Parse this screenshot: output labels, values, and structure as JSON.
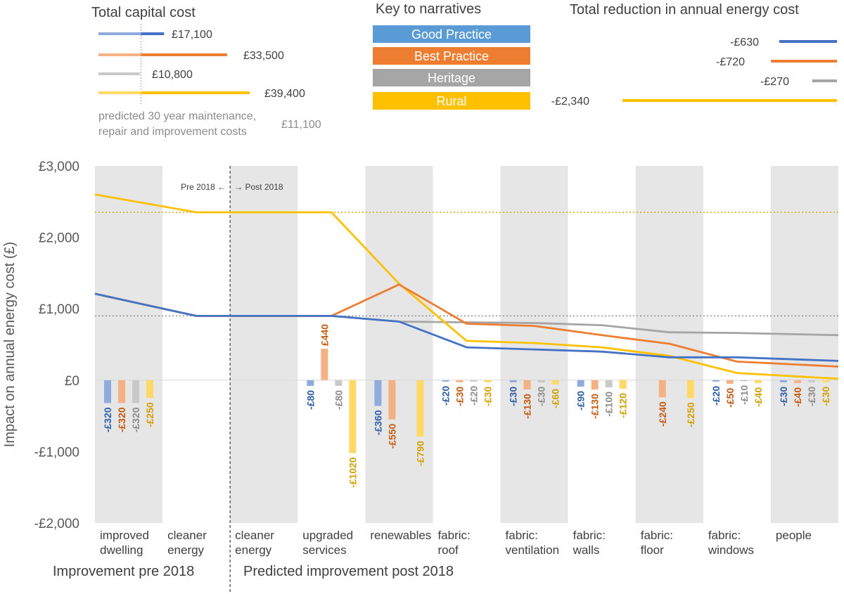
{
  "chart_data": {
    "type": "line",
    "ylabel": "Impact on annual energy cost (£)",
    "ylim": [
      -2000,
      3000
    ],
    "yticks": [
      {
        "v": 3000,
        "label": "£3,000"
      },
      {
        "v": 2000,
        "label": "£2,000"
      },
      {
        "v": 1000,
        "label": "£1,000"
      },
      {
        "v": 0,
        "label": "£0"
      },
      {
        "v": -1000,
        "label": "-£1,000"
      },
      {
        "v": -2000,
        "label": "-£2,000"
      }
    ],
    "categories": [
      [
        "improved",
        "dwelling"
      ],
      [
        "cleaner",
        "energy"
      ],
      [
        "cleaner",
        "energy"
      ],
      [
        "upgraded",
        "services"
      ],
      [
        "renewables"
      ],
      [
        "fabric:",
        "roof"
      ],
      [
        "fabric:",
        "ventilation"
      ],
      [
        "fabric:",
        "walls"
      ],
      [
        "fabric:",
        "floor"
      ],
      [
        "fabric:",
        "windows"
      ],
      [
        "people"
      ]
    ],
    "period_labels": {
      "pre": "Improvement pre 2018",
      "post": "Predicted improvement post 2018"
    },
    "divider_labels": {
      "pre": "Pre 2018 ←",
      "post": "→ Post 2018"
    },
    "reference_lines": [
      {
        "value": 2350,
        "color": "#d4a000"
      },
      {
        "value": 900,
        "color": "#7f7f7f"
      }
    ],
    "series": [
      {
        "name": "Good Practice",
        "color": "#4472c4",
        "bar_color": "#8faadc",
        "label_color": "#2e5fa8",
        "line": [
          [
            0,
            1210
          ],
          [
            1,
            900
          ],
          [
            2,
            900
          ],
          [
            3,
            900
          ],
          [
            4,
            820
          ],
          [
            5,
            460
          ],
          [
            6,
            430
          ],
          [
            7,
            400
          ],
          [
            8,
            320
          ],
          [
            9,
            320
          ],
          [
            10,
            270
          ]
        ],
        "bars": [
          [
            0,
            -320,
            "-£320"
          ],
          [
            3,
            -80,
            "-£80"
          ],
          [
            4,
            -360,
            "-£360"
          ],
          [
            5,
            -20,
            "-£20"
          ],
          [
            6,
            -30,
            "-£30"
          ],
          [
            7,
            -90,
            "-£90"
          ],
          [
            9,
            -20,
            "-£20"
          ],
          [
            10,
            -30,
            "-£30"
          ]
        ]
      },
      {
        "name": "Best Practice",
        "color": "#ed7d31",
        "bar_color": "#f4b183",
        "label_color": "#c55a11",
        "line": [
          [
            0,
            1210
          ],
          [
            1,
            900
          ],
          [
            2,
            900
          ],
          [
            3,
            900
          ],
          [
            4,
            1340
          ],
          [
            5,
            790
          ],
          [
            6,
            760
          ],
          [
            7,
            630
          ],
          [
            8,
            510
          ],
          [
            9,
            260
          ],
          [
            10,
            190
          ]
        ],
        "bars": [
          [
            0,
            -320,
            "-£320"
          ],
          [
            3,
            440,
            "£440"
          ],
          [
            4,
            -550,
            "-£550"
          ],
          [
            5,
            -30,
            "-£30"
          ],
          [
            6,
            -130,
            "-£130"
          ],
          [
            7,
            -130,
            "-£130"
          ],
          [
            8,
            -240,
            "-£240"
          ],
          [
            9,
            -50,
            "-£50"
          ],
          [
            10,
            -40,
            "-£40"
          ]
        ]
      },
      {
        "name": "Heritage",
        "color": "#a5a5a5",
        "bar_color": "#c9c9c9",
        "label_color": "#8c8c8c",
        "line": [
          [
            0,
            1210
          ],
          [
            1,
            900
          ],
          [
            2,
            900
          ],
          [
            3,
            900
          ],
          [
            4,
            820
          ],
          [
            5,
            810
          ],
          [
            6,
            800
          ],
          [
            7,
            770
          ],
          [
            8,
            670
          ],
          [
            9,
            660
          ],
          [
            10,
            630
          ]
        ],
        "bars": [
          [
            0,
            -320,
            "-£320"
          ],
          [
            3,
            -80,
            "-£80"
          ],
          [
            5,
            -20,
            "-£20"
          ],
          [
            6,
            -30,
            "-£30"
          ],
          [
            7,
            -100,
            "-£100"
          ],
          [
            9,
            -10,
            "-£10"
          ],
          [
            10,
            -30,
            "-£30"
          ]
        ]
      },
      {
        "name": "Rural",
        "color": "#ffc000",
        "bar_color": "#ffd966",
        "label_color": "#d4a000",
        "line": [
          [
            0,
            2600
          ],
          [
            1,
            2350
          ],
          [
            2,
            2350
          ],
          [
            3,
            2350
          ],
          [
            4,
            1350
          ],
          [
            5,
            550
          ],
          [
            6,
            520
          ],
          [
            7,
            460
          ],
          [
            8,
            340
          ],
          [
            9,
            100
          ],
          [
            10,
            20
          ]
        ],
        "bars": [
          [
            0,
            -250,
            "-£250"
          ],
          [
            3,
            -1020,
            "-£1020"
          ],
          [
            4,
            -790,
            "-£790"
          ],
          [
            5,
            -30,
            "-£30"
          ],
          [
            6,
            -60,
            "-£60"
          ],
          [
            7,
            -120,
            "-£120"
          ],
          [
            8,
            -250,
            "-£250"
          ],
          [
            9,
            -40,
            "-£40"
          ],
          [
            10,
            -30,
            "-£30"
          ]
        ]
      }
    ]
  },
  "capital_cost": {
    "title": "Total capital cost",
    "maintenance_value": 11100,
    "maintenance_note_1": "predicted 30 year maintenance,",
    "maintenance_note_2": "repair and improvement costs",
    "maintenance_label": "£11,100",
    "rows": [
      {
        "series": "Good Practice",
        "value": 17100,
        "label": "£17,100"
      },
      {
        "series": "Best Practice",
        "value": 33500,
        "label": "£33,500"
      },
      {
        "series": "Heritage",
        "value": 10800,
        "label": "£10,800"
      },
      {
        "series": "Rural",
        "value": 39400,
        "label": "£39,400"
      }
    ]
  },
  "key": {
    "title": "Key to narratives",
    "items": [
      {
        "label": "Good Practice",
        "color": "#5b9bd5"
      },
      {
        "label": "Best Practice",
        "color": "#ed7d31"
      },
      {
        "label": "Heritage",
        "color": "#a5a5a5"
      },
      {
        "label": "Rural",
        "color": "#ffc000"
      }
    ]
  },
  "energy_reduction": {
    "title": "Total reduction in annual energy cost",
    "rows": [
      {
        "series": "Good Practice",
        "value": -630,
        "label": "-£630"
      },
      {
        "series": "Best Practice",
        "value": -720,
        "label": "-£720"
      },
      {
        "series": "Heritage",
        "value": -270,
        "label": "-£270"
      },
      {
        "series": "Rural",
        "value": -2340,
        "label": "-£2,340"
      }
    ]
  }
}
